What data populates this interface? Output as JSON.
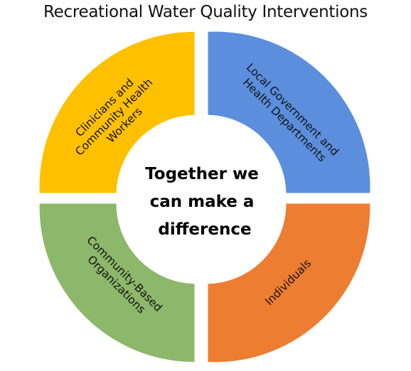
{
  "title": "Recreational Water Quality Interventions",
  "center": {
    "lines": [
      "Together we",
      "can make a",
      "difference"
    ]
  },
  "segments": [
    {
      "id": "clinicians",
      "lines": [
        "Clinicians and",
        "Community Health",
        "Workers"
      ],
      "color": "#FFC000"
    },
    {
      "id": "local-government",
      "lines": [
        "Local Government and",
        "Health Departments"
      ],
      "color": "#5B8FDD"
    },
    {
      "id": "community-based",
      "lines": [
        "Community-Based",
        "Organizations"
      ],
      "color": "#8DB76A"
    },
    {
      "id": "individuals",
      "lines": [
        "Individuals"
      ],
      "color": "#ED7D31"
    }
  ]
}
